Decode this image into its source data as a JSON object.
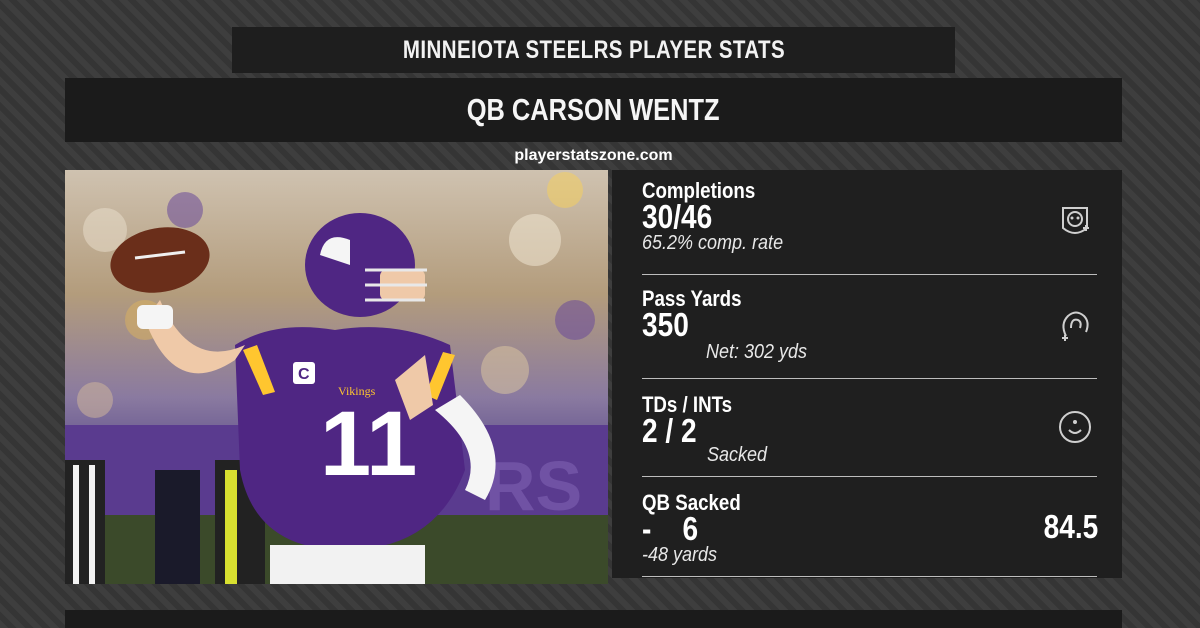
{
  "header": {
    "title": "MINNEIOTA STEELRS PLAYER STATS",
    "player": "QB CARSON WENTZ",
    "site": "playerstatszone.com"
  },
  "photo": {
    "jersey_number": "11",
    "jersey_text": "Vikings",
    "captain_patch": "C"
  },
  "stats": [
    {
      "label": "Completions",
      "value": "30/46",
      "sub": "65.2% comp. rate",
      "icon": "helmet-badge-icon"
    },
    {
      "label": "Pass Yards",
      "value": "350",
      "sub": "Net: 302 yds",
      "icon": "hand-rotate-icon"
    },
    {
      "label": "TDs / INTs",
      "value": "2 / 2",
      "sub": "Sacked",
      "icon": "smile-circle-icon"
    },
    {
      "label": "QB Sacked",
      "value": "-    6",
      "sub": "-48 yards",
      "rating": "84.5"
    }
  ],
  "colors": {
    "panel": "#1f1f1f",
    "bar": "#1b1b1b",
    "vikings_purple": "#4f2683",
    "vikings_gold": "#ffc62f"
  }
}
